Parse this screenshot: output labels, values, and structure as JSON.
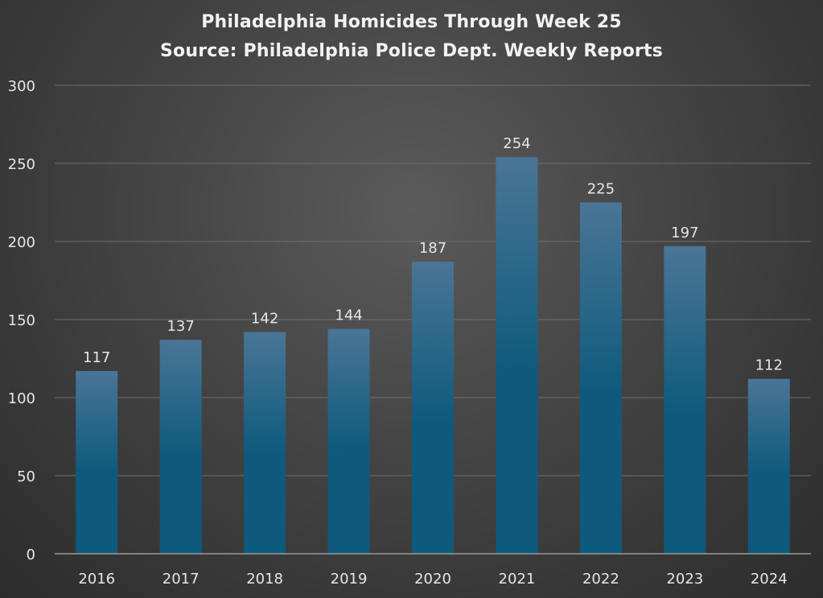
{
  "chart_data": {
    "type": "bar",
    "title": "Philadelphia Homicides Through Week 25",
    "subtitle": "Source: Philadelphia Police Dept. Weekly Reports",
    "categories": [
      "2016",
      "2017",
      "2018",
      "2019",
      "2020",
      "2021",
      "2022",
      "2023",
      "2024"
    ],
    "values": [
      117,
      137,
      142,
      144,
      187,
      254,
      225,
      197,
      112
    ],
    "data_labels": [
      "117",
      "137",
      "142",
      "144",
      "187",
      "254",
      "225",
      "197",
      "112"
    ],
    "y_ticks": [
      "0",
      "50",
      "100",
      "150",
      "200",
      "250",
      "300"
    ],
    "ylim": [
      0,
      300
    ],
    "xlabel": "",
    "ylabel": "",
    "grid": true,
    "legend": "none",
    "colors": {
      "bar_top": "#4a7596",
      "bar_bottom": "#0d5a7d",
      "gridline": "#6e6e6e",
      "axis": "#9a9a9a",
      "text": "#e6e6e6"
    }
  }
}
